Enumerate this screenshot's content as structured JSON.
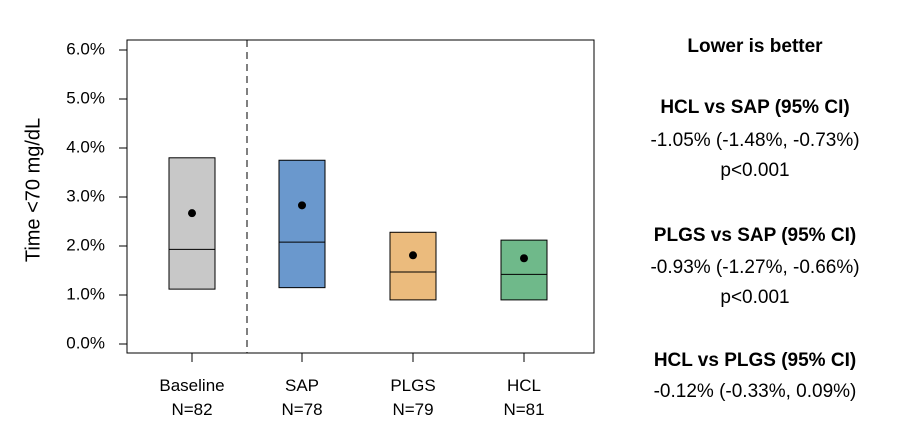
{
  "chart_data": {
    "type": "box",
    "ylabel": "Time <70 mg/dL",
    "ylim": [
      0,
      6.0
    ],
    "yticks": [
      "0.0%",
      "1.0%",
      "2.0%",
      "3.0%",
      "4.0%",
      "5.0%",
      "6.0%"
    ],
    "ytick_values": [
      0,
      1,
      2,
      3,
      4,
      5,
      6
    ],
    "grid": false,
    "separator_after_category": 0,
    "categories": [
      {
        "name": "Baseline",
        "n": "N=82",
        "q1": 1.12,
        "median": 1.93,
        "q3": 3.8,
        "mean": 2.67,
        "color": "#c8c8c8"
      },
      {
        "name": "SAP",
        "n": "N=78",
        "q1": 1.15,
        "median": 2.08,
        "q3": 3.75,
        "mean": 2.83,
        "color": "#6a98cd"
      },
      {
        "name": "PLGS",
        "n": "N=79",
        "q1": 0.9,
        "median": 1.47,
        "q3": 2.28,
        "mean": 1.81,
        "color": "#ebbb7d"
      },
      {
        "name": "HCL",
        "n": "N=81",
        "q1": 0.9,
        "median": 1.42,
        "q3": 2.12,
        "mean": 1.75,
        "color": "#6fb98a"
      }
    ]
  },
  "stats": {
    "heading": "Lower is better",
    "comparisons": [
      {
        "title": "HCL vs SAP (95% CI)",
        "estimate": "-1.05% (-1.48%, -0.73%)",
        "p": "p<0.001"
      },
      {
        "title": "PLGS vs SAP (95% CI)",
        "estimate": "-0.93% (-1.27%, -0.66%)",
        "p": "p<0.001"
      },
      {
        "title": "HCL vs PLGS (95% CI)",
        "estimate": "-0.12% (-0.33%, 0.09%)",
        "p": ""
      }
    ]
  }
}
